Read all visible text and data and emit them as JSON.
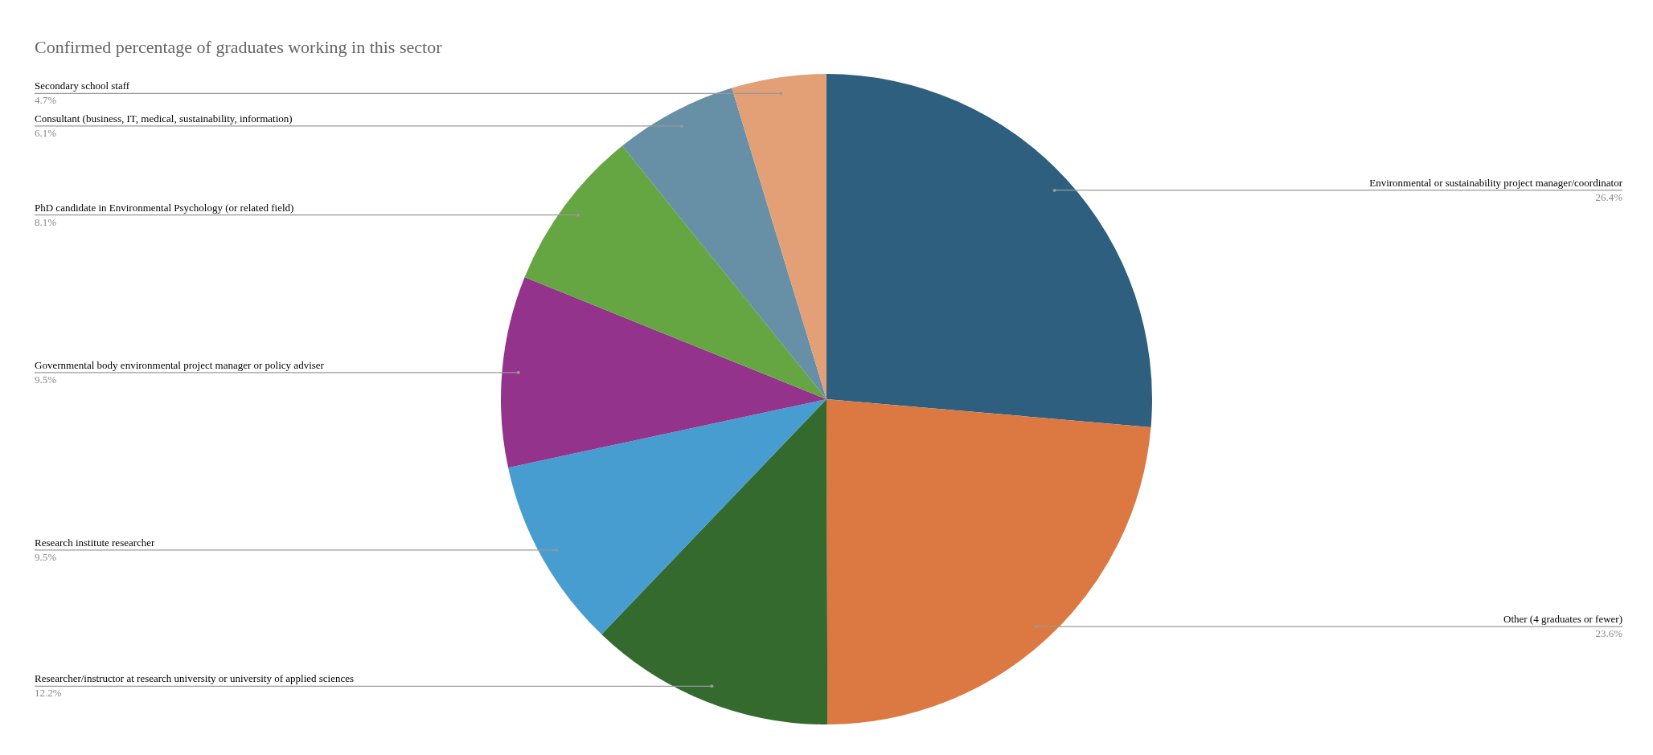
{
  "chart_data": {
    "type": "pie",
    "title": "Confirmed percentage of graduates working in this sector",
    "categories": [
      "Environmental or sustainability project manager/coordinator",
      "Other (4 graduates or fewer)",
      "Researcher/instructor at research university or university of applied sciences",
      "Research institute researcher",
      "Governmental body environmental project manager or policy adviser",
      "PhD candidate in Environmental Psychology (or related field)",
      "Consultant (business, IT, medical, sustainability, information)",
      "Secondary school staff"
    ],
    "values": [
      26.4,
      23.6,
      12.2,
      9.5,
      9.5,
      8.1,
      6.1,
      4.7
    ],
    "colors": [
      "#2e5f7f",
      "#dc7841",
      "#356a2f",
      "#479dd0",
      "#93338b",
      "#65a542",
      "#678fa5",
      "#e39f76"
    ],
    "value_labels": [
      "26.4%",
      "23.6%",
      "12.2%",
      "9.5%",
      "9.5%",
      "8.1%",
      "6.1%",
      "4.7%"
    ],
    "legend": false
  }
}
